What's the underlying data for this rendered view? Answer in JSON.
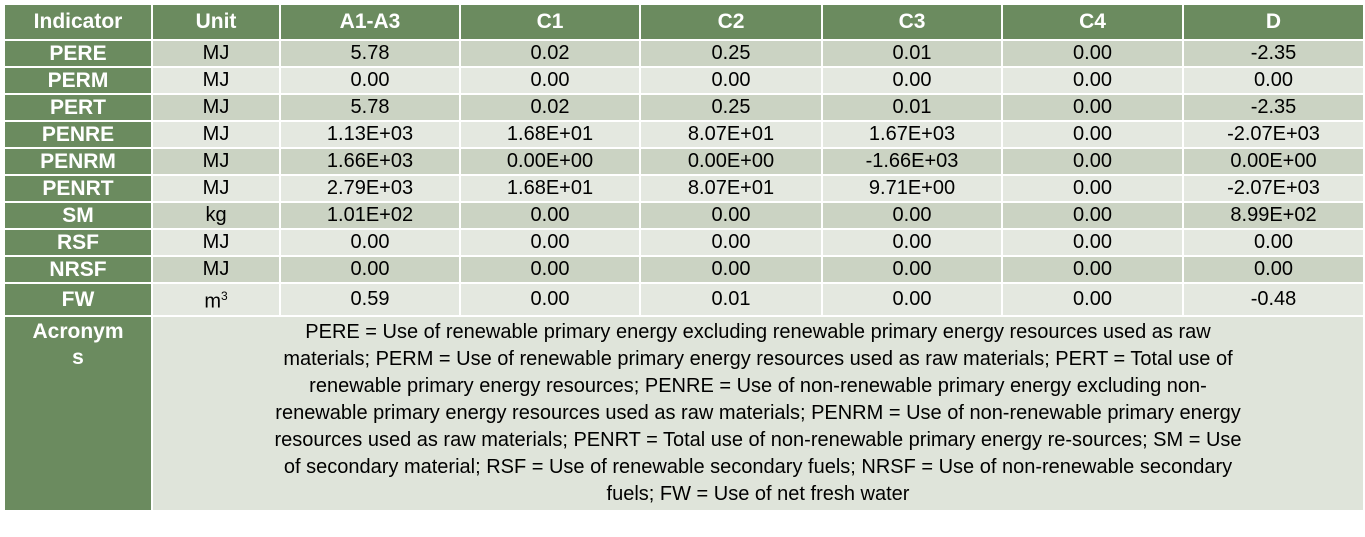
{
  "header": [
    "Indicator",
    "Unit",
    "A1-A3",
    "C1",
    "C2",
    "C3",
    "C4",
    "D"
  ],
  "rows": [
    {
      "indicator": "PERE",
      "unit": "MJ",
      "values": [
        "5.78",
        "0.02",
        "0.25",
        "0.01",
        "0.00",
        "-2.35"
      ]
    },
    {
      "indicator": "PERM",
      "unit": "MJ",
      "values": [
        "0.00",
        "0.00",
        "0.00",
        "0.00",
        "0.00",
        "0.00"
      ]
    },
    {
      "indicator": "PERT",
      "unit": "MJ",
      "values": [
        "5.78",
        "0.02",
        "0.25",
        "0.01",
        "0.00",
        "-2.35"
      ]
    },
    {
      "indicator": "PENRE",
      "unit": "MJ",
      "values": [
        "1.13E+03",
        "1.68E+01",
        "8.07E+01",
        "1.67E+03",
        "0.00",
        "-2.07E+03"
      ]
    },
    {
      "indicator": "PENRM",
      "unit": "MJ",
      "values": [
        "1.66E+03",
        "0.00E+00",
        "0.00E+00",
        "-1.66E+03",
        "0.00",
        "0.00E+00"
      ]
    },
    {
      "indicator": "PENRT",
      "unit": "MJ",
      "values": [
        "2.79E+03",
        "1.68E+01",
        "8.07E+01",
        "9.71E+00",
        "0.00",
        "-2.07E+03"
      ]
    },
    {
      "indicator": "SM",
      "unit": "kg",
      "values": [
        "1.01E+02",
        "0.00",
        "0.00",
        "0.00",
        "0.00",
        "8.99E+02"
      ]
    },
    {
      "indicator": "RSF",
      "unit": "MJ",
      "values": [
        "0.00",
        "0.00",
        "0.00",
        "0.00",
        "0.00",
        "0.00"
      ]
    },
    {
      "indicator": "NRSF",
      "unit": "MJ",
      "values": [
        "0.00",
        "0.00",
        "0.00",
        "0.00",
        "0.00",
        "0.00"
      ]
    },
    {
      "indicator": "FW",
      "unit": "m",
      "unit_sup": "3",
      "values": [
        "0.59",
        "0.00",
        "0.01",
        "0.00",
        "0.00",
        "-0.48"
      ]
    }
  ],
  "acronyms": {
    "label_line1": "Acronym",
    "label_line2": "s",
    "text_lines": [
      "PERE = Use of renewable primary energy excluding renewable primary energy resources used as raw",
      "materials; PERM = Use of renewable primary energy resources used as raw materials; PERT = Total use of",
      "renewable primary energy resources; PENRE = Use of non-renewable primary energy excluding non-",
      "renewable primary energy resources used as raw materials; PENRM = Use of non-renewable primary energy",
      "resources used as raw materials; PENRT = Total use of non-renewable primary energy re-sources; SM = Use",
      "of secondary material; RSF = Use of renewable secondary fuels; NRSF = Use of non-renewable secondary",
      "fuels; FW = Use of net fresh water"
    ]
  }
}
